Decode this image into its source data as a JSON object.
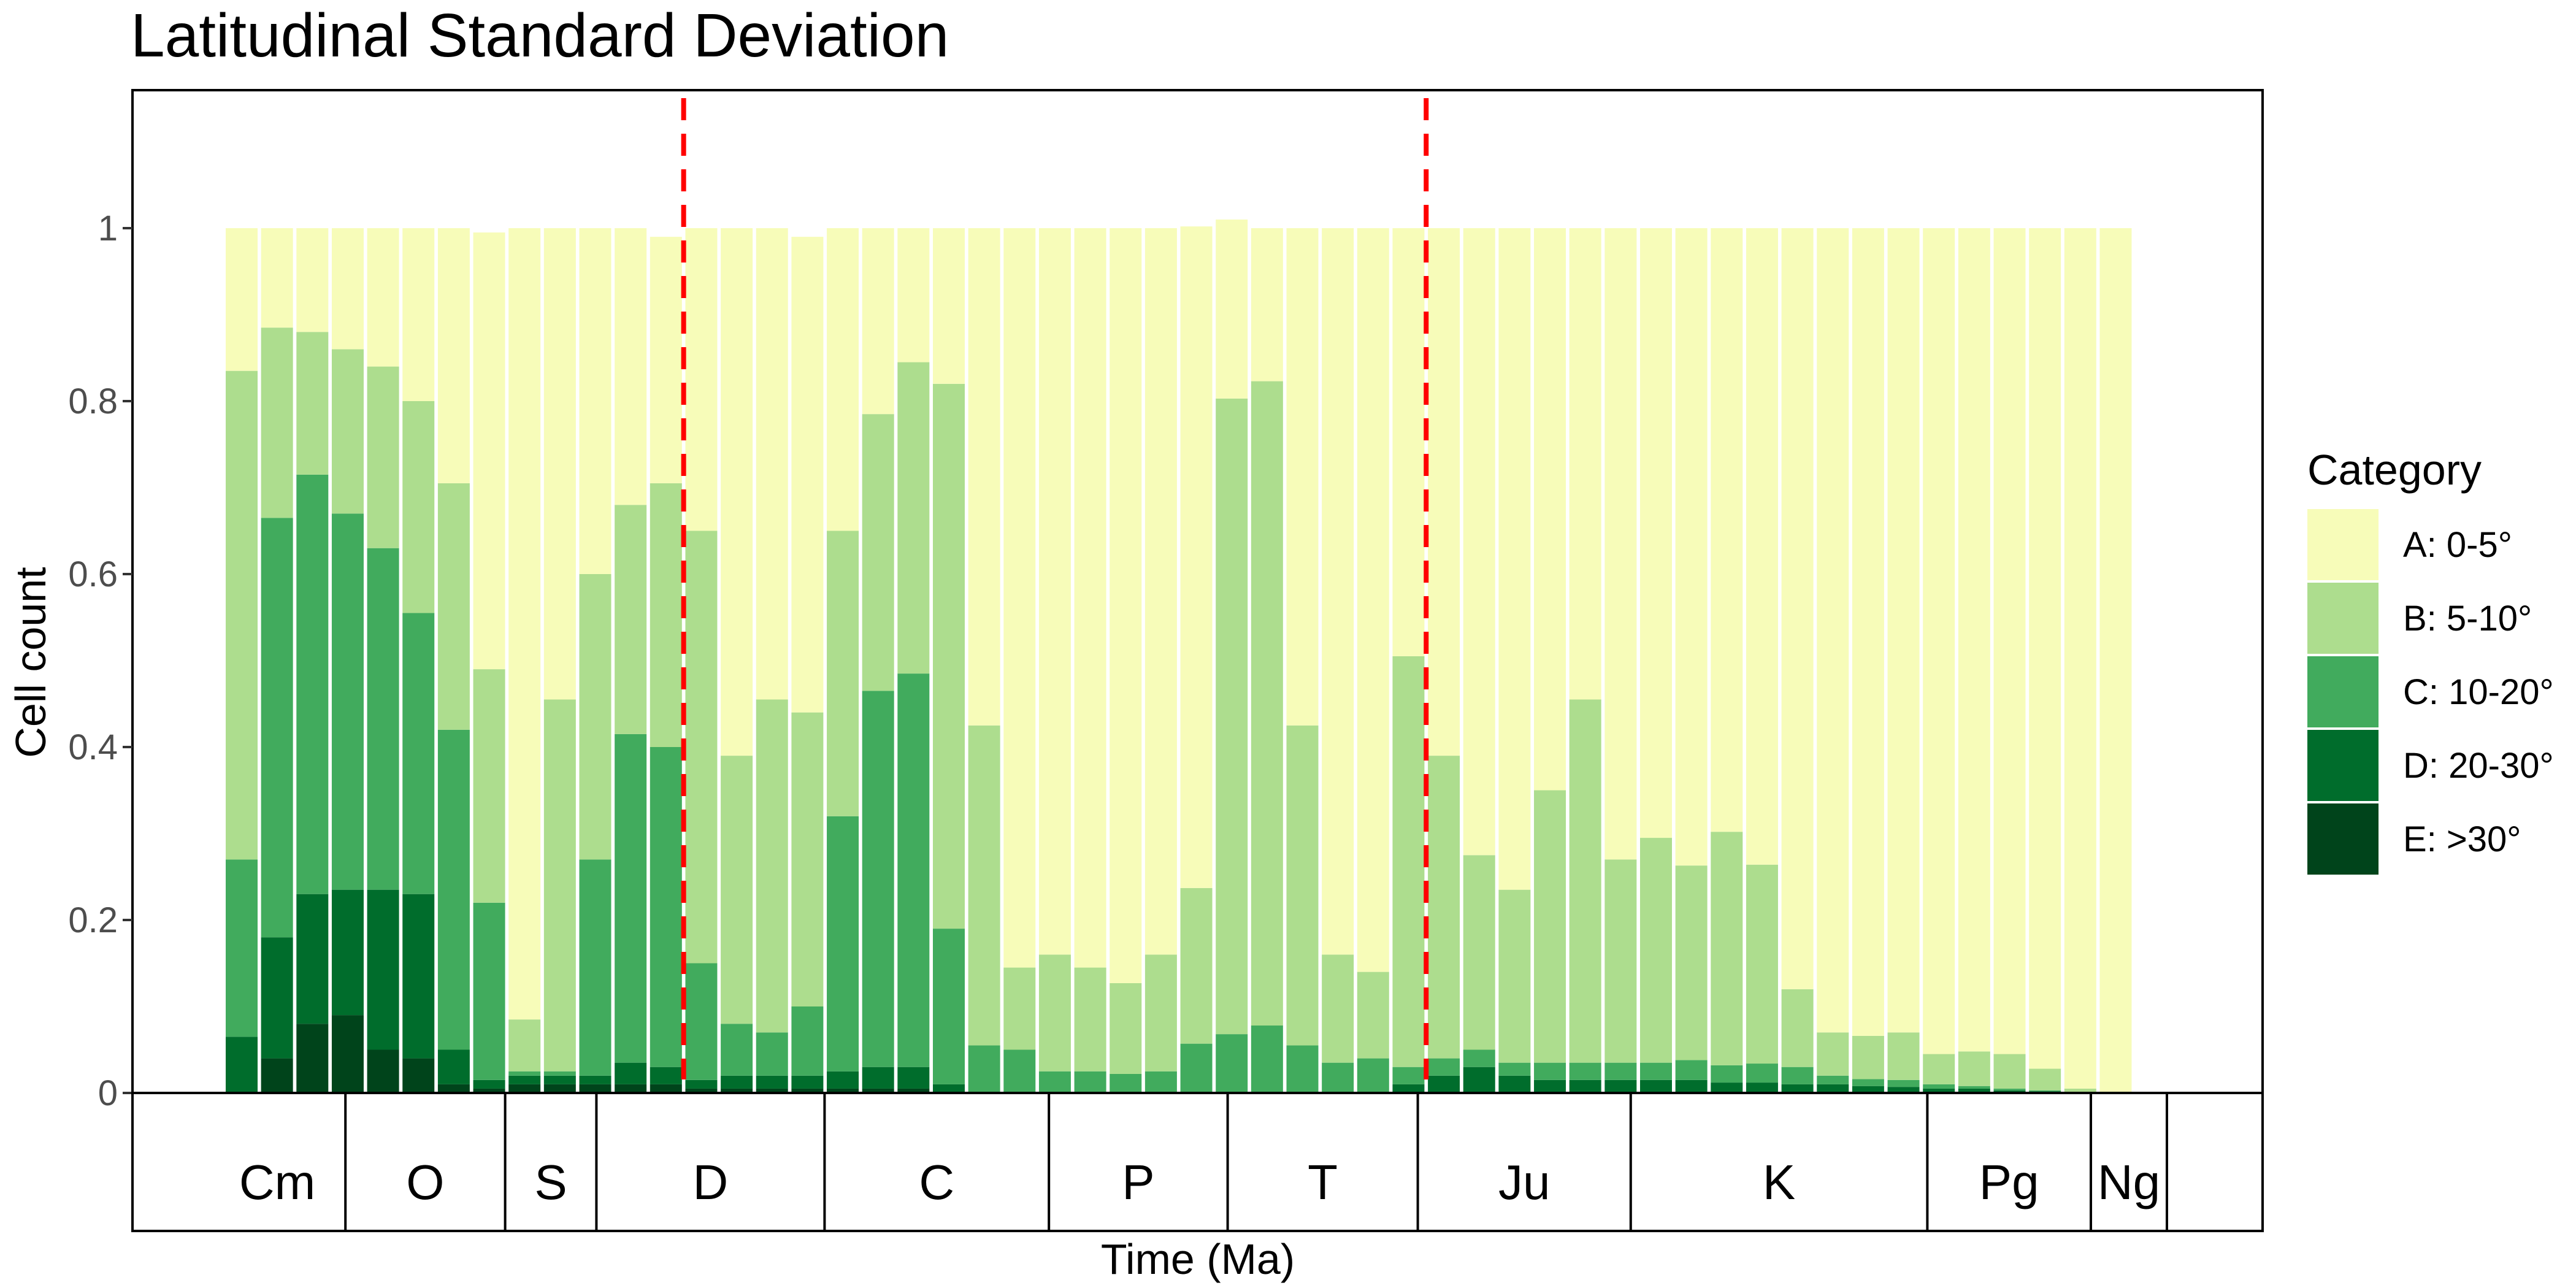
{
  "chart_data": {
    "type": "bar",
    "stacked": true,
    "title": "Latitudinal Standard Deviation",
    "xlabel": "Time (Ma)",
    "ylabel": "Cell count",
    "ylim": [
      0,
      1.15
    ],
    "yticks": [
      "0",
      "0.2",
      "0.4",
      "0.6",
      "0.8",
      "1"
    ],
    "ytick_values": [
      0,
      0.2,
      0.4,
      0.6,
      0.8,
      1
    ],
    "grid": false,
    "legend_position": "right",
    "legend_title": "Category",
    "bar_count": 54,
    "series": [
      {
        "name": "E: >30°",
        "color": "#00441b",
        "values": [
          0.0,
          0.04,
          0.08,
          0.09,
          0.05,
          0.04,
          0.01,
          0.005,
          0.01,
          0.01,
          0.01,
          0.01,
          0.01,
          0.005,
          0.005,
          0.005,
          0.005,
          0.005,
          0.005,
          0.005,
          0,
          0,
          0,
          0,
          0,
          0,
          0,
          0,
          0,
          0,
          0,
          0,
          0,
          0,
          0,
          0,
          0,
          0,
          0,
          0,
          0,
          0,
          0,
          0,
          0,
          0,
          0,
          0,
          0,
          0,
          0,
          0,
          0,
          0
        ]
      },
      {
        "name": "D: 20-30°",
        "color": "#006d2c",
        "values": [
          0.065,
          0.14,
          0.15,
          0.145,
          0.185,
          0.19,
          0.04,
          0.01,
          0.01,
          0.01,
          0.01,
          0.025,
          0.02,
          0.01,
          0.015,
          0.015,
          0.015,
          0.02,
          0.025,
          0.025,
          0.01,
          0,
          0,
          0,
          0,
          0,
          0,
          0,
          0,
          0,
          0,
          0,
          0,
          0.01,
          0.02,
          0.03,
          0.02,
          0.015,
          0.015,
          0.015,
          0.015,
          0.015,
          0.012,
          0.012,
          0.01,
          0.01,
          0.008,
          0.007,
          0.005,
          0.005,
          0.003,
          0.002,
          0,
          0
        ]
      },
      {
        "name": "C: 10-20°",
        "color": "#41ab5d",
        "values": [
          0.205,
          0.485,
          0.485,
          0.435,
          0.395,
          0.325,
          0.37,
          0.205,
          0.005,
          0.005,
          0.25,
          0.38,
          0.37,
          0.135,
          0.06,
          0.05,
          0.08,
          0.295,
          0.435,
          0.455,
          0.18,
          0.055,
          0.05,
          0.025,
          0.025,
          0.022,
          0.025,
          0.057,
          0.068,
          0.078,
          0.055,
          0.035,
          0.04,
          0.02,
          0.02,
          0.02,
          0.015,
          0.02,
          0.02,
          0.02,
          0.02,
          0.023,
          0.02,
          0.022,
          0.02,
          0.01,
          0.008,
          0.008,
          0.005,
          0.003,
          0.002,
          0.001,
          0,
          0
        ]
      },
      {
        "name": "B: 5-10°",
        "color": "#addd8e",
        "values": [
          0.565,
          0.22,
          0.165,
          0.19,
          0.21,
          0.245,
          0.285,
          0.27,
          0.06,
          0.43,
          0.33,
          0.265,
          0.305,
          0.5,
          0.31,
          0.385,
          0.34,
          0.33,
          0.32,
          0.36,
          0.63,
          0.37,
          0.095,
          0.135,
          0.12,
          0.105,
          0.135,
          0.18,
          0.735,
          0.745,
          0.37,
          0.125,
          0.1,
          0.475,
          0.35,
          0.225,
          0.2,
          0.315,
          0.42,
          0.235,
          0.26,
          0.225,
          0.27,
          0.23,
          0.09,
          0.05,
          0.05,
          0.055,
          0.035,
          0.04,
          0.04,
          0.025,
          0.005,
          0
        ]
      },
      {
        "name": "A: 0-5°",
        "color": "#f7fcb9",
        "values": [
          0.165,
          0.115,
          0.12,
          0.14,
          0.16,
          0.2,
          0.295,
          0.505,
          0.915,
          0.545,
          0.4,
          0.32,
          0.285,
          0.35,
          0.61,
          0.545,
          0.55,
          0.35,
          0.215,
          0.155,
          0.18,
          0.575,
          0.855,
          0.84,
          0.855,
          0.873,
          0.84,
          0.765,
          0.207,
          0.177,
          0.575,
          0.84,
          0.86,
          0.495,
          0.61,
          0.725,
          0.765,
          0.65,
          0.545,
          0.73,
          0.705,
          0.737,
          0.698,
          0.736,
          0.88,
          0.93,
          0.934,
          0.93,
          0.955,
          0.952,
          0.955,
          0.972,
          0.995,
          1
        ]
      }
    ],
    "reference_lines": [
      {
        "bar_boundary": 13,
        "color": "#ff0000",
        "style": "dashed"
      },
      {
        "bar_boundary": 34,
        "color": "#ff0000",
        "style": "dashed"
      }
    ],
    "periods": [
      {
        "label": "Cm",
        "bars": 5.6
      },
      {
        "label": "O",
        "bars": 4.2
      },
      {
        "label": "S",
        "bars": 2.4
      },
      {
        "label": "D",
        "bars": 6.0
      },
      {
        "label": "C",
        "bars": 5.9
      },
      {
        "label": "P",
        "bars": 4.7
      },
      {
        "label": "T",
        "bars": 5.0
      },
      {
        "label": "Ju",
        "bars": 5.6
      },
      {
        "label": "K",
        "bars": 7.8
      },
      {
        "label": "Pg",
        "bars": 4.3
      },
      {
        "label": "Ng",
        "bars": 2.0
      }
    ]
  }
}
